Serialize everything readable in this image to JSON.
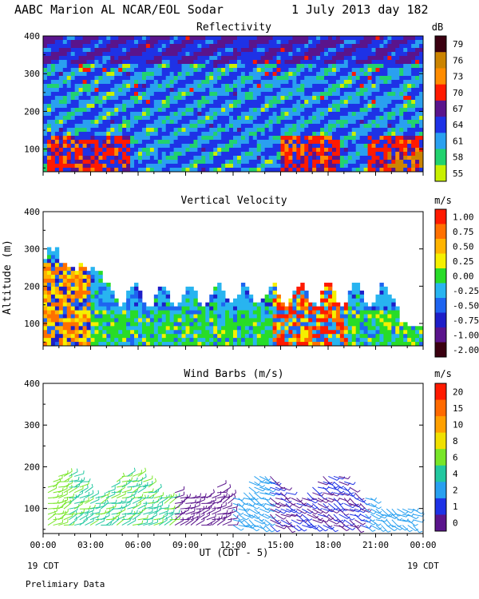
{
  "title": "AABC Marion AL NCAR/EOL Sodar",
  "date": "1 July 2013 day 182",
  "yaxis_label": "Altitude (m)",
  "xaxis_label": "UT  (CDT - 5)",
  "x_start_note": "19 CDT",
  "x_end_note": "19 CDT",
  "footer": "Prelimiary Data",
  "chart_data": [
    {
      "type": "heatmap",
      "title": "Reflectivity",
      "unit": "dB",
      "ylim": [
        40,
        400
      ],
      "yticks": [
        100,
        200,
        300,
        400
      ],
      "xticks": [
        "00:00",
        "03:00",
        "06:00",
        "09:00",
        "12:00",
        "15:00",
        "18:00",
        "21:00",
        "00:00"
      ],
      "colorbar": {
        "labels": [
          "79",
          "76",
          "73",
          "70",
          "67",
          "64",
          "61",
          "58",
          "55"
        ],
        "colors": [
          "#3a0010",
          "#cc8400",
          "#ff8c00",
          "#ff1a00",
          "#5a148c",
          "#1e32e6",
          "#2aa0f0",
          "#22d26e",
          "#c8f000"
        ]
      }
    },
    {
      "type": "heatmap",
      "title": "Vertical Velocity",
      "unit": "m/s",
      "ylim": [
        40,
        400
      ],
      "yticks": [
        100,
        200,
        300,
        400
      ],
      "xticks": [
        "00:00",
        "03:00",
        "06:00",
        "09:00",
        "12:00",
        "15:00",
        "18:00",
        "21:00",
        "00:00"
      ],
      "colorbar": {
        "labels": [
          "1.00",
          "0.75",
          "0.50",
          "0.25",
          "0.00",
          "-0.25",
          "-0.50",
          "-0.75",
          "-1.00",
          "-2.00"
        ],
        "colors": [
          "#ff1a00",
          "#ff7000",
          "#ffb400",
          "#f5f000",
          "#28dc28",
          "#28b4f0",
          "#1e64f0",
          "#1e1ec8",
          "#5a148c",
          "#3a0010"
        ]
      }
    },
    {
      "type": "scatter",
      "title": "Wind Barbs (m/s)",
      "unit": "m/s",
      "ylim": [
        40,
        400
      ],
      "yticks": [
        100,
        200,
        300,
        400
      ],
      "xticks": [
        "00:00",
        "03:00",
        "06:00",
        "09:00",
        "12:00",
        "15:00",
        "18:00",
        "21:00",
        "00:00"
      ],
      "colorbar": {
        "labels": [
          "20",
          "15",
          "10",
          "8",
          "6",
          "4",
          "2",
          "1",
          "0"
        ],
        "colors": [
          "#ff1a00",
          "#ff6a00",
          "#ffa000",
          "#f0e000",
          "#78e628",
          "#22c8a0",
          "#28a0f0",
          "#1e32e6",
          "#5a148c"
        ]
      }
    }
  ]
}
